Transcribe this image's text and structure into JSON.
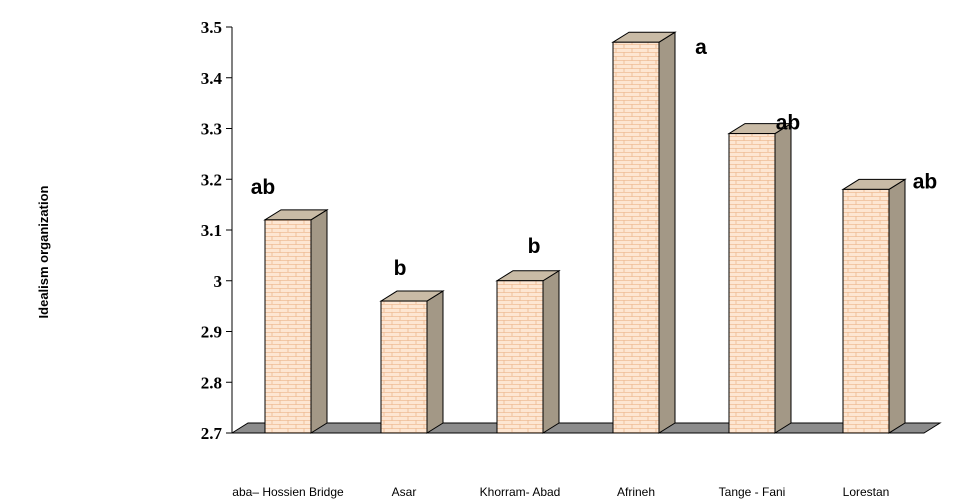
{
  "chart_data": {
    "type": "bar",
    "ylabel": "Idealism organization",
    "xlabel": "",
    "ylim": [
      2.7,
      3.5
    ],
    "yticks": [
      "2.7",
      "2.8",
      "2.9",
      "3",
      "3.1",
      "3.2",
      "3.3",
      "3.4",
      "3.5"
    ],
    "categories": [
      "aba– Hossien Bridge",
      "Asar",
      "Khorram- Abad",
      "Afrineh",
      "Tange - Fani",
      "Lorestan"
    ],
    "values": [
      3.12,
      2.96,
      3.0,
      3.47,
      3.29,
      3.18
    ],
    "labels": [
      "ab",
      "b",
      "b",
      "a",
      "ab",
      "ab"
    ],
    "style": "3d",
    "colors": {
      "bar_front": "#fde6d2",
      "bar_side": "#a39886",
      "bar_top": "#c9bba6",
      "floor": "#8c8c8c",
      "brick": "#e8a878"
    }
  }
}
